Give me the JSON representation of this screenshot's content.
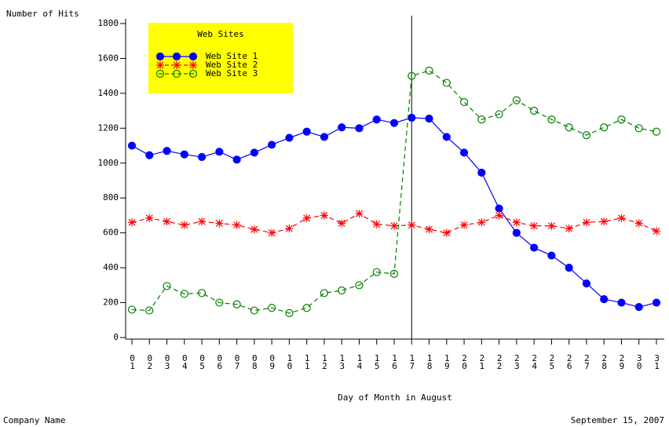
{
  "chart_data": {
    "type": "line",
    "y_label": "Number of Hits",
    "x_label": "Day of Month in August",
    "footnote_left": "Company Name",
    "footnote_right": "September 15, 2007",
    "legend_title": "Web Sites",
    "legend_color": "#ffff00",
    "categories": [
      "01",
      "02",
      "03",
      "04",
      "05",
      "06",
      "07",
      "08",
      "09",
      "10",
      "11",
      "12",
      "13",
      "14",
      "15",
      "16",
      "17",
      "18",
      "19",
      "20",
      "21",
      "22",
      "23",
      "24",
      "25",
      "26",
      "27",
      "28",
      "29",
      "30",
      "31"
    ],
    "reference_category": "17",
    "ylim": [
      0,
      1800
    ],
    "yticks": [
      0,
      200,
      400,
      600,
      800,
      1000,
      1200,
      1400,
      1600,
      1800
    ],
    "series": [
      {
        "name": "Web Site 1",
        "color": "#0000ff",
        "marker": "circle-filled",
        "line_style": "solid",
        "values": [
          1100,
          1045,
          1070,
          1050,
          1035,
          1065,
          1020,
          1060,
          1105,
          1145,
          1180,
          1150,
          1205,
          1200,
          1250,
          1230,
          1260,
          1255,
          1150,
          1060,
          945,
          740,
          600,
          515,
          470,
          400,
          310,
          220,
          200,
          175,
          200
        ]
      },
      {
        "name": "Web Site 2",
        "color": "#ff0000",
        "marker": "star",
        "line_style": "dashed",
        "values": [
          660,
          685,
          665,
          645,
          665,
          655,
          645,
          620,
          600,
          625,
          685,
          700,
          655,
          710,
          650,
          640,
          645,
          620,
          600,
          645,
          660,
          700,
          660,
          640,
          640,
          625,
          660,
          665,
          685,
          655,
          610
        ]
      },
      {
        "name": "Web Site 3",
        "color": "#008000",
        "marker": "circle-open",
        "line_style": "dashed",
        "values": [
          160,
          155,
          295,
          250,
          255,
          200,
          190,
          155,
          170,
          140,
          170,
          255,
          270,
          300,
          375,
          365,
          1500,
          1530,
          1460,
          1350,
          1250,
          1280,
          1360,
          1300,
          1250,
          1205,
          1160,
          1205,
          1250,
          1200,
          1180
        ]
      }
    ]
  }
}
